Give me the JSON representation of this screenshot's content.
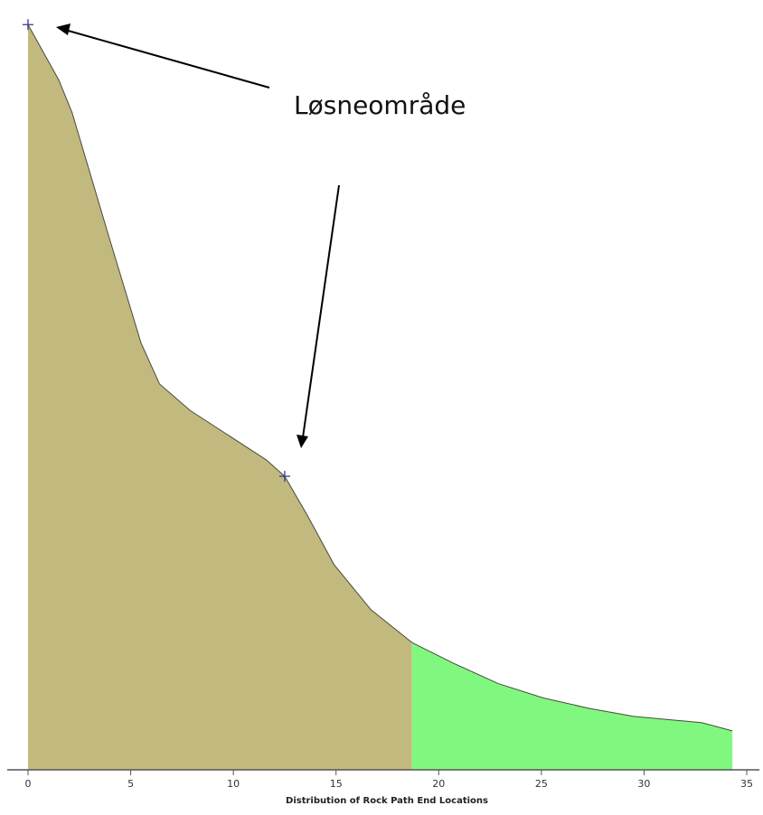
{
  "chart_data": {
    "type": "area",
    "xlabel": "Distribution of Rock Path End Locations",
    "annotation": "Løsneområde",
    "xlim": [
      0,
      35
    ],
    "xticks": [
      0,
      5,
      10,
      15,
      20,
      25,
      30,
      35
    ],
    "ylim": [
      0,
      37.5
    ],
    "series": [
      {
        "color": "#c2b97f",
        "x": [
          0,
          1.5,
          2.15,
          3.9,
          5.5,
          6.4,
          7.9,
          9.6,
          11.6,
          12.5,
          13.6,
          14.9,
          16.7,
          18.7
        ],
        "values": [
          36.3,
          33.6,
          32.0,
          26.1,
          20.8,
          18.8,
          17.5,
          16.4,
          15.1,
          14.3,
          12.4,
          10.0,
          7.8,
          6.2
        ]
      },
      {
        "color": "#80f880",
        "x": [
          18.7,
          20.7,
          22.9,
          25.1,
          27.3,
          29.5,
          31.7,
          32.8,
          34.3
        ],
        "values": [
          6.2,
          5.2,
          4.2,
          3.5,
          3.0,
          2.6,
          2.4,
          2.3,
          1.9
        ]
      }
    ],
    "markers": [
      {
        "x": 0,
        "y": 36.3
      },
      {
        "x": 12.5,
        "y": 14.3
      }
    ]
  }
}
